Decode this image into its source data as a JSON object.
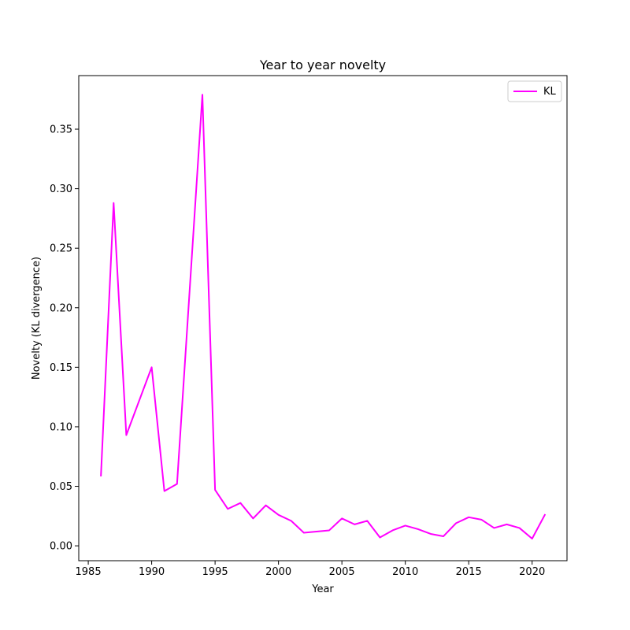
{
  "chart_data": {
    "type": "line",
    "title": "Year to year novelty",
    "xlabel": "Year",
    "ylabel": "Novelty (KL divergence)",
    "xlim": [
      1984.25,
      2022.75
    ],
    "ylim": [
      -0.0125,
      0.395
    ],
    "xticks": [
      1985,
      1990,
      1995,
      2000,
      2005,
      2010,
      2015,
      2020
    ],
    "xtick_labels": [
      "1985",
      "1990",
      "1995",
      "2000",
      "2005",
      "2010",
      "2015",
      "2020"
    ],
    "yticks": [
      0.0,
      0.05,
      0.1,
      0.15,
      0.2,
      0.25,
      0.3,
      0.35
    ],
    "ytick_labels": [
      "0.00",
      "0.05",
      "0.10",
      "0.15",
      "0.20",
      "0.25",
      "0.30",
      "0.35"
    ],
    "legend_position": "top-right",
    "grid": false,
    "series": [
      {
        "name": "KL",
        "color": "#ff00ff",
        "x": [
          1986,
          1987,
          1988,
          1990,
          1991,
          1992,
          1994,
          1995,
          1996,
          1997,
          1998,
          1999,
          2000,
          2001,
          2002,
          2003,
          2004,
          2005,
          2006,
          2007,
          2008,
          2009,
          2010,
          2011,
          2012,
          2013,
          2014,
          2015,
          2016,
          2017,
          2018,
          2019,
          2020,
          2021
        ],
        "y": [
          0.059,
          0.288,
          0.093,
          0.15,
          0.046,
          0.052,
          0.379,
          0.047,
          0.031,
          0.036,
          0.023,
          0.034,
          0.026,
          0.021,
          0.011,
          0.012,
          0.013,
          0.023,
          0.018,
          0.021,
          0.007,
          0.013,
          0.017,
          0.014,
          0.01,
          0.008,
          0.019,
          0.024,
          0.022,
          0.015,
          0.018,
          0.015,
          0.006,
          0.026
        ]
      }
    ]
  }
}
